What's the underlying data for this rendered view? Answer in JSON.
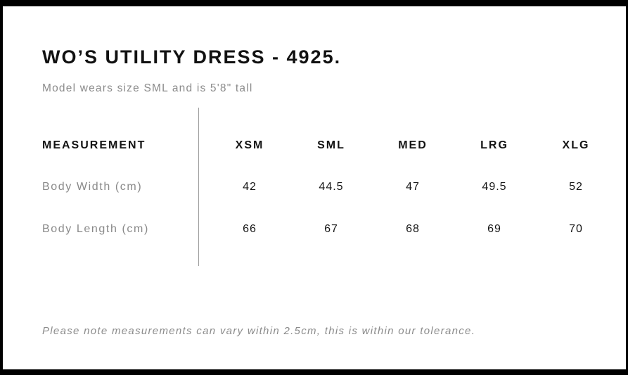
{
  "header": {
    "title": "WO’S UTILITY DRESS - 4925.",
    "subtitle": "Model wears size SML and is 5'8\" tall"
  },
  "table": {
    "columns": [
      "MEASUREMENT",
      "XSM",
      "SML",
      "MED",
      "LRG",
      "XLG"
    ],
    "rows": [
      {
        "label": "Body Width (cm)",
        "values": [
          "42",
          "44.5",
          "47",
          "49.5",
          "52"
        ]
      },
      {
        "label": "Body Length (cm)",
        "values": [
          "66",
          "67",
          "68",
          "69",
          "70"
        ]
      }
    ]
  },
  "footer": {
    "note": "Please note measurements can vary within 2.5cm, this is within our tolerance."
  },
  "colors": {
    "frame": "#000000",
    "heading_text": "#111111",
    "muted_text": "#8b8b8b",
    "value_text": "#161616",
    "divider": "#9c9c9c",
    "background": "#ffffff"
  }
}
